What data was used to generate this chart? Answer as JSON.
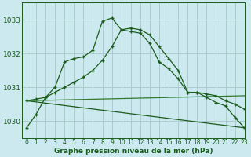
{
  "background_color": "#cce9f0",
  "grid_color": "#aacccc",
  "line_color_dark": "#1a5c1a",
  "line_color_mid": "#2d7a2d",
  "xlabel": "Graphe pression niveau de la mer (hPa)",
  "xlim": [
    -0.5,
    23
  ],
  "ylim": [
    1029.5,
    1033.5
  ],
  "yticks": [
    1030,
    1031,
    1032,
    1033
  ],
  "xticks": [
    0,
    1,
    2,
    3,
    4,
    5,
    6,
    7,
    8,
    9,
    10,
    11,
    12,
    13,
    14,
    15,
    16,
    17,
    18,
    19,
    20,
    21,
    22,
    23
  ],
  "series1_x": [
    0,
    1,
    2,
    3,
    4,
    5,
    6,
    7,
    8,
    9,
    10,
    11,
    12,
    13,
    14,
    15,
    16,
    17,
    18,
    19,
    20,
    21,
    22,
    23
  ],
  "series1_y": [
    1029.8,
    1030.2,
    1030.7,
    1031.0,
    1031.75,
    1031.85,
    1031.9,
    1032.1,
    1032.95,
    1033.05,
    1032.7,
    1032.65,
    1032.6,
    1032.3,
    1031.75,
    1031.55,
    1031.25,
    1030.85,
    1030.85,
    1030.7,
    1030.55,
    1030.45,
    1030.1,
    1029.8
  ],
  "series2_x": [
    0,
    1,
    2,
    3,
    4,
    5,
    6,
    7,
    8,
    9,
    10,
    11,
    12,
    13,
    14,
    15,
    16,
    17,
    18,
    19,
    20,
    21,
    22,
    23
  ],
  "series2_y": [
    1030.6,
    1030.65,
    1030.7,
    1030.85,
    1031.0,
    1031.15,
    1031.3,
    1031.5,
    1031.8,
    1032.2,
    1032.7,
    1032.75,
    1032.7,
    1032.55,
    1032.2,
    1031.85,
    1031.5,
    1030.85,
    1030.85,
    1030.8,
    1030.75,
    1030.6,
    1030.5,
    1030.35
  ],
  "series3_x": [
    0,
    23
  ],
  "series3_y": [
    1030.6,
    1029.8
  ],
  "series4_x": [
    0,
    23
  ],
  "series4_y": [
    1030.6,
    1030.75
  ]
}
